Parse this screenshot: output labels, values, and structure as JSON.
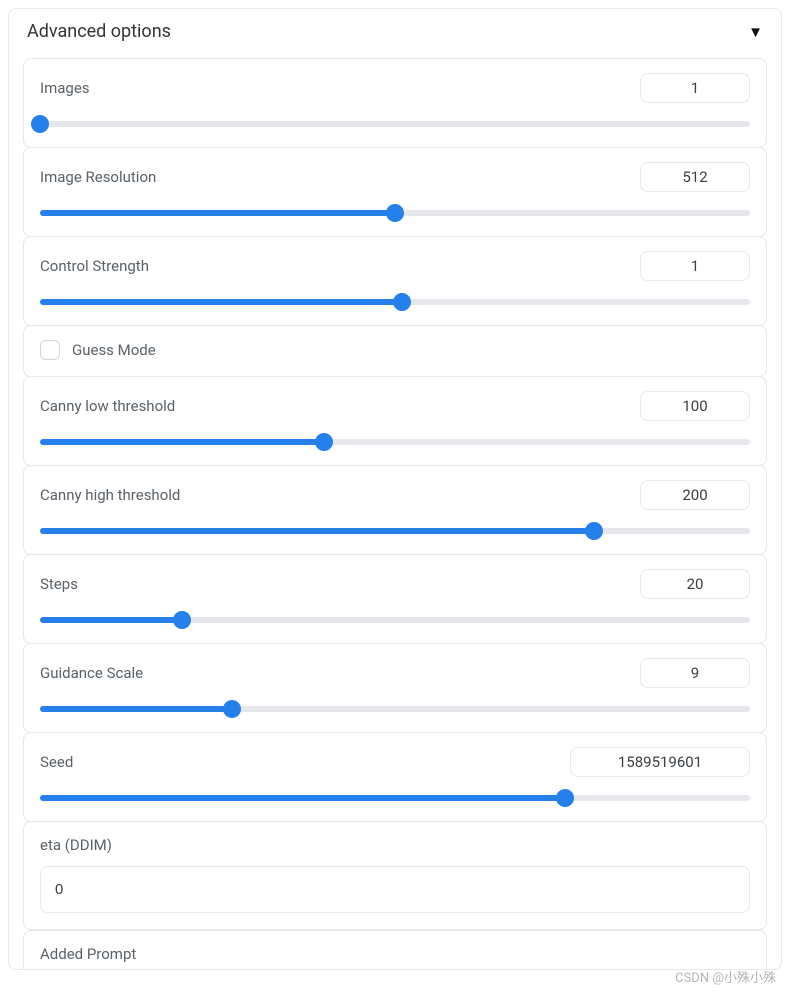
{
  "panel": {
    "title": "Advanced options",
    "collapse_icon": "▼"
  },
  "colors": {
    "accent": "#2680eb",
    "track": "#e5e7eb",
    "border": "#e5e7eb",
    "text": "#3a3f44",
    "label": "#5a6169",
    "background": "#ffffff"
  },
  "sliders": {
    "images": {
      "label": "Images",
      "value": "1",
      "fill_pct": 0
    },
    "resolution": {
      "label": "Image Resolution",
      "value": "512",
      "fill_pct": 50
    },
    "control_strength": {
      "label": "Control Strength",
      "value": "1",
      "fill_pct": 51
    },
    "canny_low": {
      "label": "Canny low threshold",
      "value": "100",
      "fill_pct": 40
    },
    "canny_high": {
      "label": "Canny high threshold",
      "value": "200",
      "fill_pct": 78
    },
    "steps": {
      "label": "Steps",
      "value": "20",
      "fill_pct": 20
    },
    "guidance": {
      "label": "Guidance Scale",
      "value": "9",
      "fill_pct": 27
    },
    "seed": {
      "label": "Seed",
      "value": "1589519601",
      "fill_pct": 74,
      "wide": true
    }
  },
  "checkbox": {
    "guess_mode": {
      "label": "Guess Mode",
      "checked": false
    }
  },
  "inputs": {
    "eta": {
      "label": "eta (DDIM)",
      "value": "0"
    },
    "added_prompt": {
      "label": "Added Prompt"
    }
  },
  "watermark": "CSDN @小殊小殊"
}
